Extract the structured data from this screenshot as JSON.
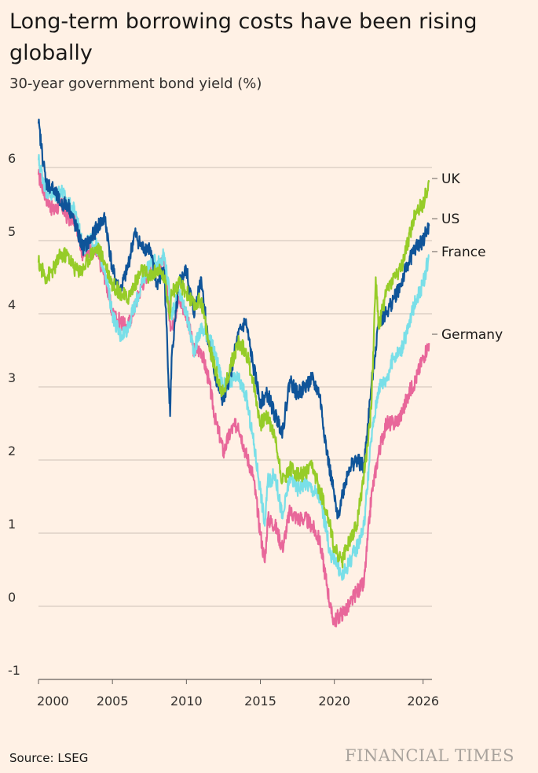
{
  "header": {
    "title": "Long-term borrowing costs have been rising globally",
    "subtitle": "30-year government bond yield (%)"
  },
  "footer": {
    "source": "Source: LSEG",
    "brand": "FINANCIAL TIMES"
  },
  "chart_data": {
    "type": "line",
    "title": "Long-term borrowing costs have been rising globally",
    "subtitle": "30-year government bond yield (%)",
    "xlabel": "",
    "ylabel": "",
    "xlim": [
      2000,
      2026.6
    ],
    "ylim": [
      -1,
      6.8
    ],
    "x_ticks": [
      {
        "value": 2000,
        "label": "2000"
      },
      {
        "value": 2005,
        "label": "2005"
      },
      {
        "value": 2010,
        "label": "2010"
      },
      {
        "value": 2015,
        "label": "2015"
      },
      {
        "value": 2020,
        "label": "2020"
      },
      {
        "value": 2026,
        "label": "2026"
      }
    ],
    "y_ticks": [
      {
        "value": -1,
        "label": "-1"
      },
      {
        "value": 0,
        "label": "0"
      },
      {
        "value": 1,
        "label": "1"
      },
      {
        "value": 2,
        "label": "2"
      },
      {
        "value": 3,
        "label": "3"
      },
      {
        "value": 4,
        "label": "4"
      },
      {
        "value": 5,
        "label": "5"
      },
      {
        "value": 6,
        "label": "6"
      }
    ],
    "grid": true,
    "legend": "direct labels at right end of lines",
    "series": [
      {
        "name": "Germany",
        "color": "#e8679a",
        "x": [
          2000.0,
          2000.5,
          2001.0,
          2001.5,
          2002.0,
          2002.5,
          2003.0,
          2003.5,
          2004.0,
          2004.5,
          2005.0,
          2005.5,
          2006.0,
          2006.5,
          2007.0,
          2007.5,
          2008.0,
          2008.5,
          2008.9,
          2009.0,
          2009.5,
          2010.0,
          2010.5,
          2011.0,
          2011.5,
          2012.0,
          2012.3,
          2012.5,
          2013.0,
          2013.5,
          2014.0,
          2014.5,
          2015.0,
          2015.3,
          2015.5,
          2016.0,
          2016.5,
          2017.0,
          2017.5,
          2018.0,
          2018.5,
          2019.0,
          2019.5,
          2019.8,
          2020.0,
          2020.5,
          2021.0,
          2021.5,
          2022.0,
          2022.5,
          2023.0,
          2023.5,
          2024.0,
          2024.5,
          2025.0,
          2025.5,
          2026.0,
          2026.4
        ],
        "y": [
          5.9,
          5.6,
          5.4,
          5.5,
          5.3,
          5.3,
          4.8,
          4.9,
          4.8,
          4.5,
          4.0,
          3.9,
          3.8,
          4.1,
          4.4,
          4.6,
          4.6,
          4.7,
          3.9,
          3.8,
          4.2,
          4.0,
          3.5,
          3.5,
          3.1,
          2.5,
          2.3,
          2.1,
          2.4,
          2.5,
          2.1,
          1.8,
          1.0,
          0.6,
          1.2,
          1.1,
          0.8,
          1.3,
          1.2,
          1.2,
          1.1,
          0.9,
          0.3,
          -0.1,
          -0.2,
          -0.1,
          0.0,
          0.2,
          0.3,
          1.5,
          2.1,
          2.5,
          2.5,
          2.6,
          2.9,
          3.1,
          3.4,
          3.6
        ]
      },
      {
        "name": "France",
        "color": "#79dfe8",
        "x": [
          2000.0,
          2000.5,
          2001.0,
          2001.5,
          2002.0,
          2002.5,
          2003.0,
          2003.5,
          2004.0,
          2004.5,
          2005.0,
          2005.5,
          2006.0,
          2006.5,
          2007.0,
          2007.5,
          2008.0,
          2008.5,
          2008.9,
          2009.0,
          2009.5,
          2010.0,
          2010.5,
          2011.0,
          2011.5,
          2012.0,
          2012.5,
          2013.0,
          2013.5,
          2014.0,
          2014.5,
          2015.0,
          2015.3,
          2015.5,
          2016.0,
          2016.5,
          2017.0,
          2017.5,
          2018.0,
          2018.5,
          2019.0,
          2019.5,
          2019.8,
          2020.0,
          2020.5,
          2021.0,
          2021.5,
          2022.0,
          2022.5,
          2023.0,
          2023.5,
          2024.0,
          2024.5,
          2025.0,
          2025.5,
          2026.0,
          2026.4
        ],
        "y": [
          6.1,
          5.7,
          5.6,
          5.7,
          5.5,
          5.4,
          4.9,
          5.0,
          4.9,
          4.6,
          4.0,
          3.7,
          3.8,
          4.1,
          4.4,
          4.7,
          4.7,
          4.8,
          4.2,
          4.0,
          4.3,
          4.0,
          3.5,
          3.8,
          3.7,
          3.4,
          3.0,
          3.1,
          3.1,
          2.9,
          2.3,
          1.6,
          1.1,
          1.7,
          1.8,
          1.2,
          1.8,
          1.6,
          1.7,
          1.6,
          1.5,
          1.0,
          0.6,
          0.7,
          0.4,
          0.6,
          0.8,
          1.1,
          2.3,
          3.0,
          3.1,
          3.4,
          3.5,
          3.8,
          4.2,
          4.4,
          4.8
        ]
      },
      {
        "name": "US",
        "color": "#0f5499",
        "x": [
          2000.0,
          2000.5,
          2001.0,
          2001.5,
          2002.0,
          2002.5,
          2003.0,
          2003.5,
          2004.0,
          2004.5,
          2005.0,
          2005.5,
          2006.0,
          2006.5,
          2007.0,
          2007.5,
          2008.0,
          2008.5,
          2008.9,
          2009.0,
          2009.5,
          2010.0,
          2010.5,
          2011.0,
          2011.5,
          2012.0,
          2012.5,
          2013.0,
          2013.5,
          2014.0,
          2014.5,
          2015.0,
          2015.5,
          2016.0,
          2016.5,
          2017.0,
          2017.5,
          2018.0,
          2018.5,
          2019.0,
          2019.5,
          2020.0,
          2020.2,
          2020.5,
          2021.0,
          2021.5,
          2022.0,
          2022.5,
          2023.0,
          2023.5,
          2024.0,
          2024.5,
          2025.0,
          2025.5,
          2026.0,
          2026.4
        ],
        "y": [
          6.6,
          5.8,
          5.7,
          5.5,
          5.5,
          5.2,
          4.9,
          5.0,
          5.2,
          5.3,
          4.6,
          4.3,
          4.6,
          5.1,
          4.9,
          4.9,
          4.4,
          4.6,
          2.6,
          3.4,
          4.4,
          4.6,
          4.0,
          4.5,
          3.6,
          3.1,
          2.8,
          3.2,
          3.7,
          3.9,
          3.3,
          2.8,
          2.9,
          2.6,
          2.4,
          3.1,
          2.9,
          3.0,
          3.1,
          2.9,
          2.1,
          1.5,
          1.2,
          1.5,
          1.9,
          2.0,
          1.9,
          3.0,
          3.9,
          4.0,
          4.2,
          4.4,
          4.7,
          4.9,
          5.0,
          5.2
        ]
      },
      {
        "name": "UK",
        "color": "#96cc28",
        "x": [
          2000.0,
          2000.5,
          2001.0,
          2001.5,
          2002.0,
          2002.5,
          2003.0,
          2003.5,
          2004.0,
          2004.5,
          2005.0,
          2005.5,
          2006.0,
          2006.5,
          2007.0,
          2007.5,
          2008.0,
          2008.5,
          2008.9,
          2009.0,
          2009.5,
          2010.0,
          2010.5,
          2011.0,
          2011.5,
          2012.0,
          2012.5,
          2013.0,
          2013.5,
          2014.0,
          2014.5,
          2015.0,
          2015.5,
          2016.0,
          2016.5,
          2017.0,
          2017.5,
          2018.0,
          2018.5,
          2019.0,
          2019.5,
          2020.0,
          2020.5,
          2021.0,
          2021.5,
          2022.0,
          2022.5,
          2022.8,
          2023.0,
          2023.5,
          2024.0,
          2024.5,
          2025.0,
          2025.5,
          2026.0,
          2026.4
        ],
        "y": [
          4.7,
          4.5,
          4.6,
          4.8,
          4.8,
          4.6,
          4.6,
          4.8,
          4.9,
          4.7,
          4.4,
          4.3,
          4.2,
          4.4,
          4.6,
          4.5,
          4.6,
          4.5,
          4.0,
          4.3,
          4.4,
          4.3,
          4.1,
          4.2,
          3.6,
          3.2,
          2.9,
          3.3,
          3.6,
          3.5,
          3.1,
          2.5,
          2.6,
          2.3,
          1.7,
          1.9,
          1.8,
          1.8,
          1.9,
          1.6,
          1.3,
          0.8,
          0.6,
          0.9,
          1.1,
          1.8,
          2.7,
          4.5,
          3.8,
          4.3,
          4.5,
          4.6,
          5.0,
          5.4,
          5.5,
          5.8
        ]
      }
    ],
    "end_labels": [
      {
        "series": "UK",
        "label": "UK",
        "value": 5.85
      },
      {
        "series": "US",
        "label": "US",
        "value": 5.3
      },
      {
        "series": "France",
        "label": "France",
        "value": 4.85
      },
      {
        "series": "Germany",
        "label": "Germany",
        "value": 3.72
      }
    ]
  }
}
